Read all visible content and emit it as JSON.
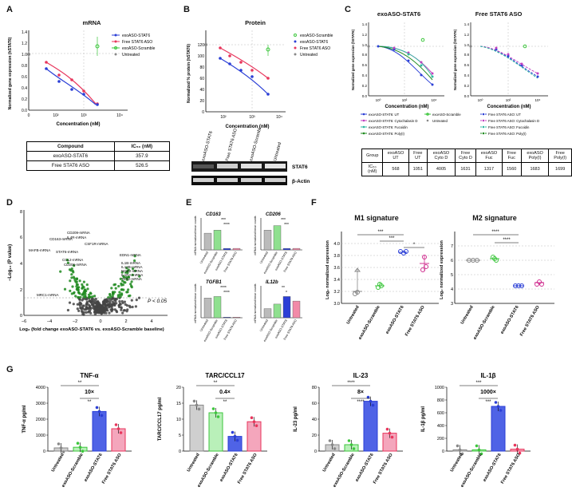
{
  "panels": {
    "A": "A",
    "B": "B",
    "C": "C",
    "D": "D",
    "E": "E",
    "F": "F",
    "G": "G"
  },
  "colors": {
    "blue": "#2b3fd6",
    "red": "#e8365c",
    "green": "#3cc63c",
    "gray": "#888888",
    "magenta": "#c040c0",
    "teal": "#2fb8a0",
    "darkgreen": "#1e8a1e",
    "pink": "#f3a9c0"
  },
  "A": {
    "title": "mRNA",
    "ylabel": "Normalized gene expression (hSTAT6)",
    "xlabel": "Concentration (nM)",
    "yticks": [
      "0.0",
      "0.2",
      "0.4",
      "0.6",
      "0.8",
      "1.0",
      "1.2",
      "1.4"
    ],
    "xticks": [
      "0",
      "10",
      "10²",
      "10³",
      "10⁴"
    ],
    "legend": [
      "exoASO-STAT6",
      "Free STAT6 ASO",
      "exoASO-Scramble",
      "Untreated"
    ],
    "table": {
      "h1": "Compound",
      "h2": "IC₅₀ (nM)",
      "rows": [
        [
          "exoASO-STAT6",
          "357.9"
        ],
        [
          "Free STAT6 ASO",
          "526.5"
        ]
      ]
    }
  },
  "B": {
    "title": "Protein",
    "ylabel": "Normalized % protein (hSTAT6)",
    "xlabel": "Concentration (nM)",
    "yticks": [
      "0",
      "20",
      "40",
      "60",
      "80",
      "100",
      "120"
    ],
    "xticks": [
      "10²",
      "10³",
      "10⁴"
    ],
    "legend": [
      "exoASO-Scramble",
      "exoASO-STAT6",
      "Free STAT6 ASO",
      "Untreated"
    ],
    "blot_lanes": [
      "exoASO-STAT6",
      "Free STAT6 ASO",
      "exoASO-Scramble",
      "Untreated"
    ],
    "blot_labels": [
      "STAT6",
      "β-Actin"
    ]
  },
  "C": {
    "title1": "exoASO-STAT6",
    "title2": "Free STAT6 ASO",
    "ylabel": "Normalized gene expression (hSTAT6)",
    "xlabel": "Concentration (nM)",
    "yticks": [
      "0.0",
      "0.2",
      "0.4",
      "0.6",
      "0.8",
      "1.0",
      "1.2",
      "1.4"
    ],
    "xticks": [
      "10⁰",
      "10²",
      "10⁴"
    ],
    "legend_left": [
      "exoASO-STAT6: UT",
      "exoASO-STAT6: Cytochalasin D",
      "exoASO-STAT6: Fucoidin",
      "exoASO-STAT6: Poly(I)",
      "exoASO-Scramble",
      "Untreated"
    ],
    "legend_right": [
      "Free STAT6 ASO: UT",
      "Free STAT6 ASO: Cytochalasin D",
      "Free STAT6 ASO: Fucoidin",
      "Free STAT6 ASO: Poly(I)"
    ],
    "table": {
      "row1": [
        "Group",
        "exoASO UT",
        "Free UT",
        "exoASO Cyto D",
        "Free Cyto D",
        "exoASO Fuc",
        "Free Fuc",
        "exoASO Poly(I)",
        "Free Poly(I)"
      ],
      "row2": [
        "IC₅₀ (nM)",
        "568",
        "1051",
        "4005",
        "1631",
        "1317",
        "1560",
        "1683",
        "1699"
      ]
    }
  },
  "D": {
    "ylabel": "−Log₁₀ (P value)",
    "xlabel": "Log₂ (fold change exoASO-STAT6 vs. exoASO-Scramble baseline)",
    "yticks": [
      "0",
      "2",
      "4",
      "6",
      "8"
    ],
    "xticks": [
      "−6",
      "−4",
      "−2",
      "0",
      "2",
      "4"
    ],
    "pval": "P < 0.05",
    "genes_left": [
      "CD163-mRNA",
      "CD209-mRNA",
      "IL4R-mRNA",
      "CSF1R-mRNA",
      "MAFB-mRNA",
      "STAT6-mRNA",
      "CCL2-mRNA",
      "CD206-mRNA",
      "MRC1-mRNA"
    ],
    "genes_right": [
      "EDN1-mRNA",
      "IL1B-mRNA",
      "IL12B-mRNA",
      "NOS2-mRNA",
      "IL1RA-mRNA",
      "TLR2-mRNA"
    ]
  },
  "E": {
    "genes": [
      "CD163",
      "CD206",
      "TGFB1",
      "IL12b"
    ],
    "ylabel": "mRNA normalized linear counts",
    "xcats": [
      "Untreated",
      "exoASO-Scramble",
      "exoASO-STAT6",
      "Free STAT6 ASO"
    ],
    "sig": {
      "CD163": [
        "***",
        "****"
      ],
      "CD206": [
        "***",
        "***"
      ],
      "TGFB1": [
        "****",
        "****"
      ],
      "IL12b": [
        "**",
        "*"
      ]
    }
  },
  "F": {
    "title1": "M1 signature",
    "title2": "M2 signature",
    "ylabel": "Log₂ normalized expression",
    "yticks1": [
      "3.0",
      "3.2",
      "3.4",
      "3.6",
      "3.8",
      "4.0"
    ],
    "yticks2": [
      "3",
      "4",
      "5",
      "6",
      "7"
    ],
    "xcats": [
      "Untreated",
      "exoASO-Scramble",
      "exoASO-STAT6",
      "Free STAT6 ASO"
    ],
    "sig1": [
      "***",
      "***",
      "*"
    ],
    "sig2": [
      "****",
      "****"
    ]
  },
  "G": {
    "titles": [
      "TNF-α",
      "TARC/CCL17",
      "IL-23",
      "IL-1β"
    ],
    "ylabels": [
      "TNF-α pg/ml",
      "TARC/CCL17 pg/ml",
      "IL-23 pg/ml",
      "IL-1β pg/ml"
    ],
    "yticks": [
      [
        "0",
        "1000",
        "2000",
        "3000",
        "4000"
      ],
      [
        "0",
        "5",
        "10",
        "15",
        "20"
      ],
      [
        "0",
        "20",
        "40",
        "60",
        "80"
      ],
      [
        "0",
        "200",
        "400",
        "600",
        "800",
        "1000"
      ]
    ],
    "folds": [
      "10×",
      "0.4×",
      "8×",
      "1000×"
    ],
    "stars": [
      [
        "**",
        "**"
      ],
      [
        "**",
        "**"
      ],
      [
        "****",
        "****"
      ],
      [
        "***",
        "***"
      ]
    ],
    "xcats": [
      "Untreated",
      "exoASO-Scramble",
      "exoASO-STAT6",
      "Free STAT6 ASO"
    ]
  }
}
